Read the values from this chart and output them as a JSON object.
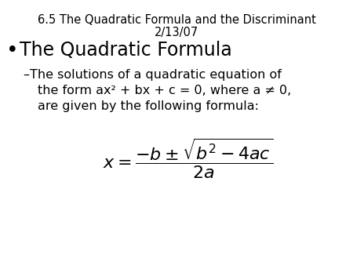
{
  "title_line1": "6.5 The Quadratic Formula and the Discriminant",
  "title_line2": "2/13/07",
  "bullet_text": "The Quadratic Formula",
  "sub_line1": "–The solutions of a quadratic equation of",
  "sub_line2": "the form ax² + bx + c = 0, where a ≠ 0,",
  "sub_line3": "are given by the following formula:",
  "bg_color": "#ffffff",
  "text_color": "#000000",
  "title_fontsize": 10.5,
  "bullet_fontsize": 17,
  "sub_fontsize": 11.5,
  "formula_fontsize": 16
}
